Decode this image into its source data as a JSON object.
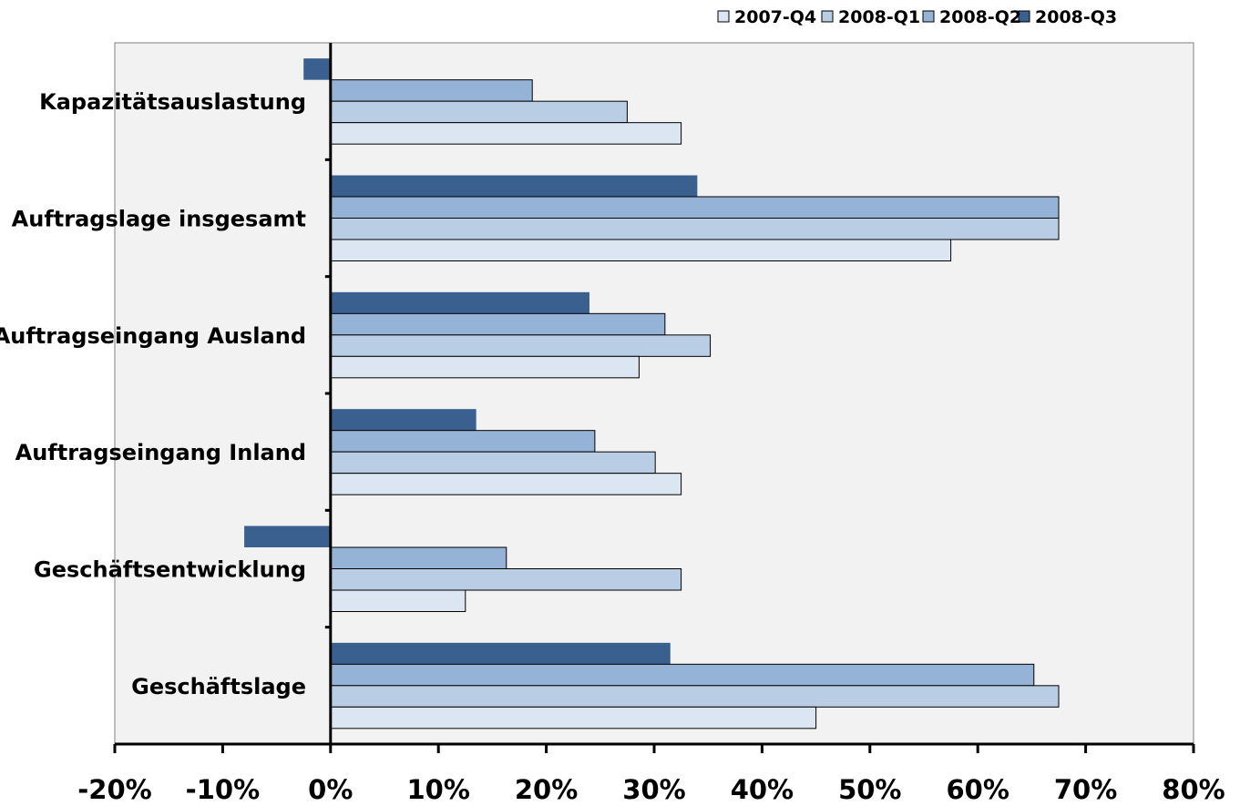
{
  "chart_data": {
    "type": "bar",
    "orientation": "horizontal",
    "title": "",
    "xlabel": "",
    "ylabel": "",
    "categories": [
      "Kapazitätsauslastung",
      "Auftragslage insgesamt",
      "Auftragseingang Ausland",
      "Auftragseingang Inland",
      "Geschäftsentwicklung",
      "Geschäftslage"
    ],
    "series": [
      {
        "name": "2008-Q3",
        "color": "#3a6090",
        "values": [
          -2.5,
          34,
          24,
          13.5,
          -8,
          31.5
        ]
      },
      {
        "name": "2008-Q2",
        "color": "#95b3d7",
        "values": [
          18.7,
          67.5,
          31,
          24.5,
          16.3,
          65.2
        ]
      },
      {
        "name": "2008-Q1",
        "color": "#b9cde5",
        "values": [
          27.5,
          67.5,
          35.2,
          30.1,
          32.5,
          67.5
        ]
      },
      {
        "name": "2007-Q4",
        "color": "#dce6f2",
        "values": [
          32.5,
          57.5,
          28.6,
          32.5,
          12.5,
          45
        ]
      }
    ],
    "xlim": [
      -20,
      80
    ],
    "xticks": [
      -20,
      -10,
      0,
      10,
      20,
      30,
      40,
      50,
      60,
      70,
      80
    ],
    "tick_format": "percent",
    "plot_background": "#f2f2f2",
    "grid": false,
    "legend_position": "top-right"
  }
}
